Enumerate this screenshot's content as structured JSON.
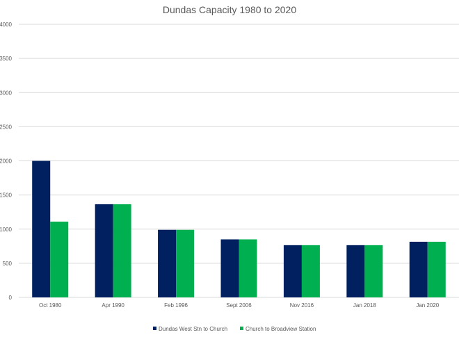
{
  "chart_data": {
    "type": "bar",
    "title": "Dundas Capacity 1980 to 2020",
    "xlabel": "",
    "ylabel": "",
    "ylim": [
      0,
      4000
    ],
    "yticks": [
      0,
      500,
      1000,
      1500,
      2000,
      2500,
      3000,
      3500,
      4000
    ],
    "grid": true,
    "legend_position": "bottom",
    "categories": [
      "Oct 1980",
      "Apr 1990",
      "Feb 1996",
      "Sept 2006",
      "Nov 2016",
      "Jan 2018",
      "Jan 2020"
    ],
    "series": [
      {
        "name": "Dundas West Stn to Church",
        "color": "#002060",
        "values": [
          2000,
          1365,
          990,
          850,
          765,
          765,
          815
        ]
      },
      {
        "name": "Church to Broadview Station",
        "color": "#00b050",
        "values": [
          1110,
          1365,
          990,
          850,
          765,
          765,
          815
        ]
      }
    ]
  }
}
